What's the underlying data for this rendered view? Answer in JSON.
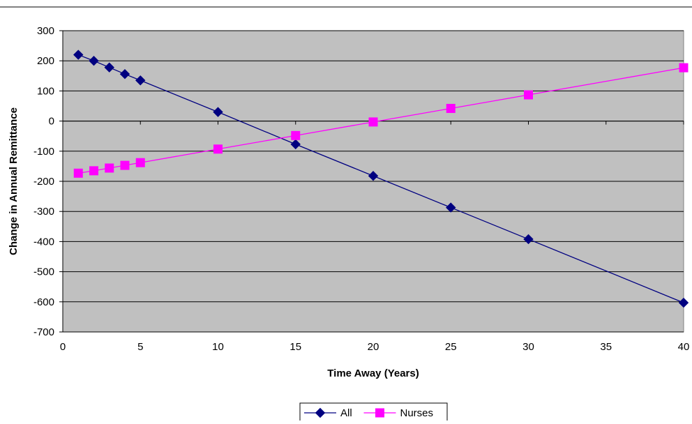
{
  "chart_data": {
    "type": "line",
    "title": "",
    "xlabel": "Time Away (Years)",
    "ylabel": "Change in Annual Remittance",
    "xlim": [
      0,
      40
    ],
    "ylim": [
      -700,
      300
    ],
    "x_ticks": [
      0,
      5,
      10,
      15,
      20,
      25,
      30,
      35,
      40
    ],
    "y_ticks": [
      300,
      200,
      100,
      0,
      -100,
      -200,
      -300,
      -400,
      -500,
      -600,
      -700
    ],
    "grid": "horizontal",
    "plot_background": "#c0c0c0",
    "legend_position": "bottom",
    "series": [
      {
        "name": "All",
        "color": "#000080",
        "marker": "diamond",
        "x": [
          1,
          2,
          3,
          4,
          5,
          10,
          15,
          20,
          25,
          30,
          40
        ],
        "y": [
          220,
          200,
          178,
          156,
          135,
          30,
          -77,
          -182,
          -287,
          -392,
          -603
        ]
      },
      {
        "name": "Nurses",
        "color": "#ff00ff",
        "marker": "square",
        "x": [
          1,
          2,
          3,
          4,
          5,
          10,
          15,
          20,
          25,
          30,
          40
        ],
        "y": [
          -173,
          -165,
          -156,
          -147,
          -138,
          -93,
          -48,
          -3,
          42,
          87,
          177
        ]
      }
    ]
  }
}
